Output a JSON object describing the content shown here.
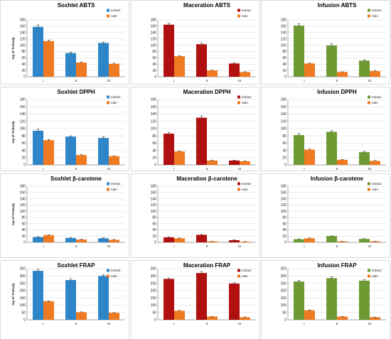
{
  "chart_data": [
    {
      "type": "bar",
      "title": "Soxhlet ABTS",
      "ylabel": "mg of Trolox/g",
      "categories": [
        "I",
        "II",
        "III"
      ],
      "ylim": [
        0,
        180
      ],
      "yticks": [
        0,
        20,
        40,
        60,
        80,
        100,
        120,
        140,
        160,
        180
      ],
      "legend_position": "top-right",
      "series": [
        {
          "name": "extract",
          "color": "#2E86C8",
          "values": [
            158,
            75,
            107
          ],
          "errors": [
            6,
            3,
            3
          ]
        },
        {
          "name": "rutin",
          "color": "#F07A22",
          "values": [
            113,
            45,
            41
          ],
          "errors": [
            3,
            2,
            2
          ]
        }
      ]
    },
    {
      "type": "bar",
      "title": "Maceration ABTS",
      "ylabel": "",
      "categories": [
        "I",
        "II",
        "III"
      ],
      "ylim": [
        0,
        180
      ],
      "yticks": [
        0,
        20,
        40,
        60,
        80,
        100,
        120,
        140,
        160,
        180
      ],
      "legend_position": "top-right",
      "series": [
        {
          "name": "extract",
          "color": "#B01010",
          "values": [
            165,
            103,
            42
          ],
          "errors": [
            4,
            4,
            2
          ]
        },
        {
          "name": "rutin",
          "color": "#F07A22",
          "values": [
            65,
            20,
            15
          ],
          "errors": [
            2,
            1,
            1
          ]
        }
      ]
    },
    {
      "type": "bar",
      "title": "Infusion ABTS",
      "ylabel": "",
      "categories": [
        "I",
        "II",
        "III"
      ],
      "ylim": [
        0,
        180
      ],
      "yticks": [
        0,
        20,
        40,
        60,
        80,
        100,
        120,
        140,
        160,
        180
      ],
      "legend_position": "top-right",
      "series": [
        {
          "name": "extract",
          "color": "#6E9A34",
          "values": [
            162,
            99,
            51
          ],
          "errors": [
            6,
            5,
            2
          ]
        },
        {
          "name": "rutin",
          "color": "#F07A22",
          "values": [
            42,
            15,
            18
          ],
          "errors": [
            2,
            1,
            1
          ]
        }
      ]
    },
    {
      "type": "bar",
      "title": "Soxhlet DPPH",
      "ylabel": "mg of Trolox/g",
      "categories": [
        "I",
        "II",
        "III"
      ],
      "ylim": [
        0,
        180
      ],
      "yticks": [
        0,
        20,
        40,
        60,
        80,
        100,
        120,
        140,
        160,
        180
      ],
      "legend_position": "top-right",
      "series": [
        {
          "name": "extract",
          "color": "#2E86C8",
          "values": [
            94,
            78,
            74
          ],
          "errors": [
            4,
            2,
            4
          ]
        },
        {
          "name": "rutin",
          "color": "#F07A22",
          "values": [
            68,
            27,
            24
          ],
          "errors": [
            2,
            1,
            1
          ]
        }
      ]
    },
    {
      "type": "bar",
      "title": "Maceration DPPH",
      "ylabel": "",
      "categories": [
        "I",
        "II",
        "III"
      ],
      "ylim": [
        0,
        180
      ],
      "yticks": [
        0,
        20,
        40,
        60,
        80,
        100,
        120,
        140,
        160,
        180
      ],
      "legend_position": "top-right",
      "series": [
        {
          "name": "extract",
          "color": "#B01010",
          "values": [
            86,
            130,
            12
          ],
          "errors": [
            3,
            5,
            1
          ]
        },
        {
          "name": "rutin",
          "color": "#F07A22",
          "values": [
            37,
            12,
            10
          ],
          "errors": [
            1,
            1,
            1
          ]
        }
      ]
    },
    {
      "type": "bar",
      "title": "Infusion DPPH",
      "ylabel": "",
      "categories": [
        "I",
        "II",
        "III"
      ],
      "ylim": [
        0,
        180
      ],
      "yticks": [
        0,
        20,
        40,
        60,
        80,
        100,
        120,
        140,
        160,
        180
      ],
      "legend_position": "top-right",
      "series": [
        {
          "name": "extract",
          "color": "#6E9A34",
          "values": [
            82,
            91,
            35
          ],
          "errors": [
            4,
            3,
            2
          ]
        },
        {
          "name": "rutin",
          "color": "#F07A22",
          "values": [
            42,
            14,
            11
          ],
          "errors": [
            2,
            1,
            1
          ]
        }
      ]
    },
    {
      "type": "bar",
      "title": "Soxhlet β-carotene",
      "ylabel": "mg of Trolox/g",
      "categories": [
        "I",
        "II",
        "III"
      ],
      "ylim": [
        0,
        180
      ],
      "yticks": [
        0,
        20,
        40,
        60,
        80,
        100,
        120,
        140,
        160,
        180
      ],
      "legend_position": "top-right",
      "series": [
        {
          "name": "extract",
          "color": "#2E86C8",
          "values": [
            17,
            14,
            13
          ],
          "errors": [
            1,
            1,
            1
          ]
        },
        {
          "name": "rutin",
          "color": "#F07A22",
          "values": [
            23,
            9,
            8
          ],
          "errors": [
            1,
            1,
            1
          ]
        }
      ]
    },
    {
      "type": "bar",
      "title": "Maceration β-carotene",
      "ylabel": "",
      "categories": [
        "I",
        "II",
        "III"
      ],
      "ylim": [
        0,
        180
      ],
      "yticks": [
        0,
        20,
        40,
        60,
        80,
        100,
        120,
        140,
        160,
        180
      ],
      "legend_position": "top-right",
      "series": [
        {
          "name": "extract",
          "color": "#B01010",
          "values": [
            16,
            24,
            7
          ],
          "errors": [
            1,
            1,
            1
          ]
        },
        {
          "name": "rutin",
          "color": "#F07A22",
          "values": [
            13,
            3,
            2
          ],
          "errors": [
            1,
            0.5,
            0.5
          ]
        }
      ]
    },
    {
      "type": "bar",
      "title": "Infusion β-carotene",
      "ylabel": "",
      "categories": [
        "I",
        "II",
        "III"
      ],
      "ylim": [
        0,
        180
      ],
      "yticks": [
        0,
        20,
        40,
        60,
        80,
        100,
        120,
        140,
        160,
        180
      ],
      "legend_position": "top-right",
      "series": [
        {
          "name": "extract",
          "color": "#6E9A34",
          "values": [
            10,
            20,
            11
          ],
          "errors": [
            1,
            1,
            1
          ]
        },
        {
          "name": "rutin",
          "color": "#F07A22",
          "values": [
            13,
            3,
            3
          ],
          "errors": [
            1,
            0.5,
            0.5
          ]
        }
      ]
    },
    {
      "type": "bar",
      "title": "Soxhlet FRAP",
      "ylabel": "mg of Trolox/g",
      "categories": [
        "I",
        "II",
        "III"
      ],
      "ylim": [
        0,
        350
      ],
      "yticks": [
        0,
        50,
        100,
        150,
        200,
        250,
        300,
        350
      ],
      "legend_position": "top-right",
      "series": [
        {
          "name": "extract",
          "color": "#2E86C8",
          "values": [
            335,
            272,
            300
          ],
          "errors": [
            10,
            10,
            8
          ]
        },
        {
          "name": "rutin",
          "color": "#F07A22",
          "values": [
            127,
            52,
            48
          ],
          "errors": [
            3,
            2,
            2
          ]
        }
      ]
    },
    {
      "type": "bar",
      "title": "Maceration FRAP",
      "ylabel": "",
      "categories": [
        "I",
        "II",
        "III"
      ],
      "ylim": [
        0,
        350
      ],
      "yticks": [
        0,
        50,
        100,
        150,
        200,
        250,
        300,
        350
      ],
      "legend_position": "top-right",
      "series": [
        {
          "name": "extract",
          "color": "#B01010",
          "values": [
            280,
            320,
            248
          ],
          "errors": [
            6,
            10,
            6
          ]
        },
        {
          "name": "rutin",
          "color": "#F07A22",
          "values": [
            62,
            22,
            18
          ],
          "errors": [
            2,
            1,
            1
          ]
        }
      ]
    },
    {
      "type": "bar",
      "title": "Infusion FRAP",
      "ylabel": "",
      "categories": [
        "I",
        "II",
        "III"
      ],
      "ylim": [
        0,
        350
      ],
      "yticks": [
        0,
        50,
        100,
        150,
        200,
        250,
        300,
        350
      ],
      "legend_position": "top-right",
      "series": [
        {
          "name": "extract",
          "color": "#6E9A34",
          "values": [
            262,
            285,
            268
          ],
          "errors": [
            8,
            8,
            8
          ]
        },
        {
          "name": "rutin",
          "color": "#F07A22",
          "values": [
            65,
            22,
            18
          ],
          "errors": [
            2,
            1,
            1
          ]
        }
      ]
    }
  ]
}
